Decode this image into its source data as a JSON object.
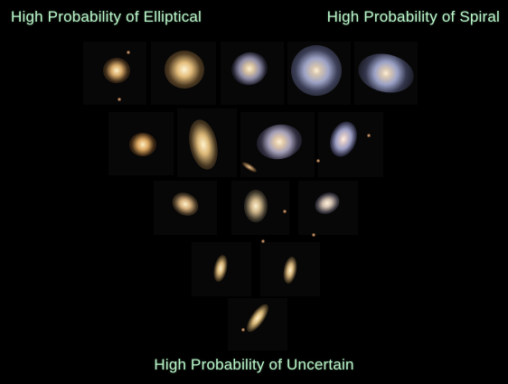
{
  "labels": {
    "elliptical": "High Probability of Elliptical",
    "spiral": "High Probability of Spiral",
    "uncertain": "High Probability of Uncertain"
  },
  "colors": {
    "background": "#000000",
    "label_text": "#b8f5c8",
    "elliptical_core": "#fff0c8",
    "spiral_arms": "#a9b0d4"
  }
}
